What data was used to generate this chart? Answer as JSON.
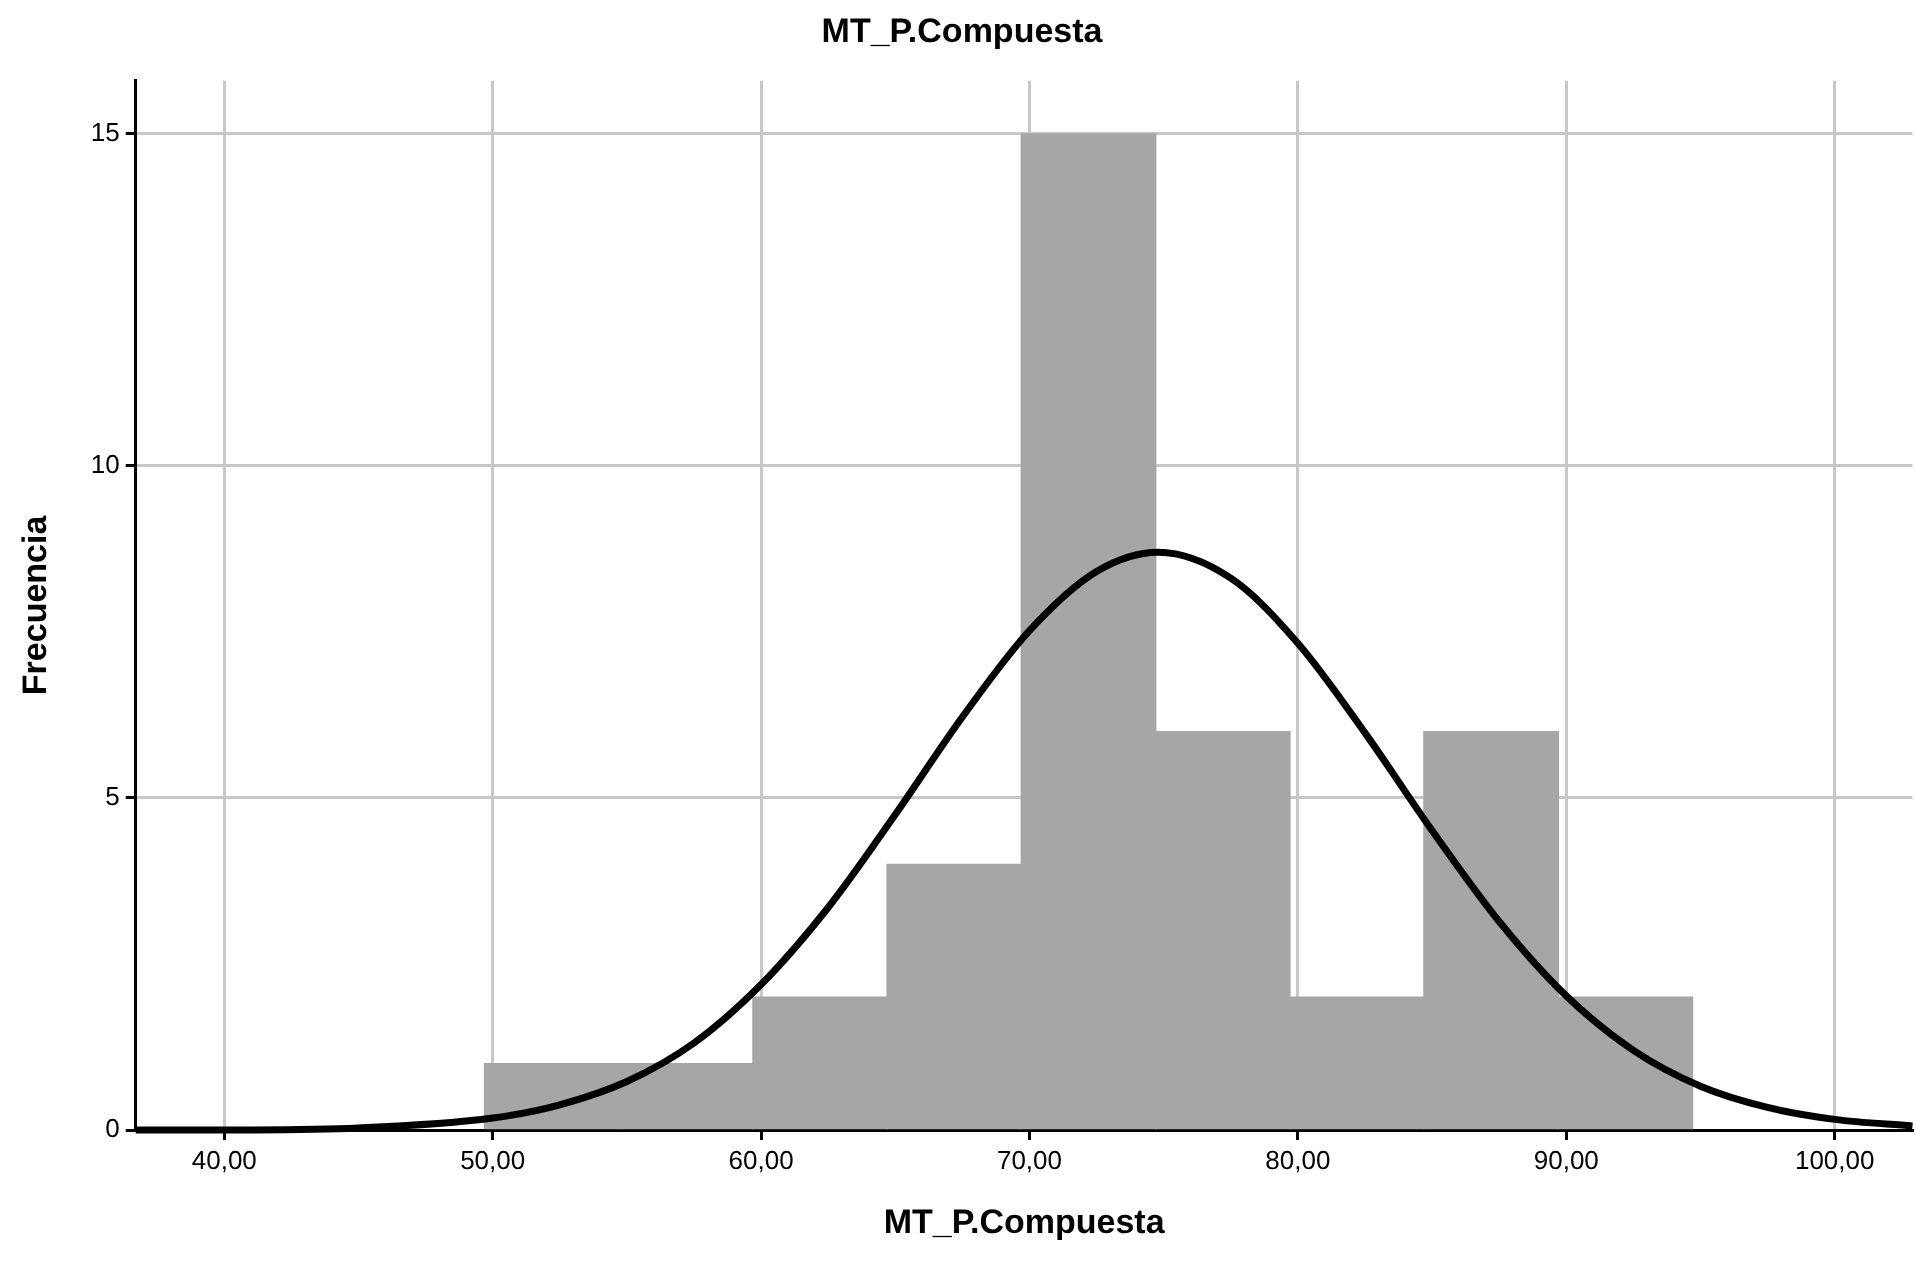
{
  "chart_data": {
    "type": "histogram",
    "title": "MT_P.Compuesta",
    "xlabel": "MT_P.Compuesta",
    "ylabel": "Frecuencia",
    "bins": [
      49.7,
      54.7,
      59.7,
      64.7,
      69.7,
      74.7,
      79.7,
      84.7,
      89.7,
      94.7
    ],
    "values": [
      1,
      1,
      2,
      4,
      15,
      6,
      2,
      6,
      2
    ],
    "color": "#a6a6a6",
    "series": [
      {
        "type": "line",
        "color": "#000000",
        "x": [
          36.7,
          40,
          45,
          50,
          52.5,
          55,
          57.5,
          60,
          62.5,
          65,
          67.5,
          70,
          72.5,
          74.8,
          77.5,
          80,
          82.5,
          85,
          87.5,
          90,
          92.5,
          95,
          97.5,
          100,
          102.9
        ],
        "values": [
          0,
          0,
          0.03,
          0.18,
          0.38,
          0.73,
          1.31,
          2.19,
          3.35,
          4.75,
          6.22,
          7.52,
          8.41,
          8.7,
          8.31,
          7.33,
          5.98,
          4.51,
          3.14,
          2.02,
          1.2,
          0.66,
          0.34,
          0.16,
          0.06
        ]
      }
    ],
    "xlim": [
      36.7,
      102.9
    ],
    "ylim": [
      0,
      15.8
    ],
    "xticks": [
      {
        "value": 40,
        "label": "40,00"
      },
      {
        "value": 50,
        "label": "50,00"
      },
      {
        "value": 60,
        "label": "60,00"
      },
      {
        "value": 70,
        "label": "70,00"
      },
      {
        "value": 80,
        "label": "80,00"
      },
      {
        "value": 90,
        "label": "90,00"
      },
      {
        "value": 100,
        "label": "100,00"
      }
    ],
    "yticks": [
      0,
      5,
      10,
      15
    ],
    "grid": true
  }
}
